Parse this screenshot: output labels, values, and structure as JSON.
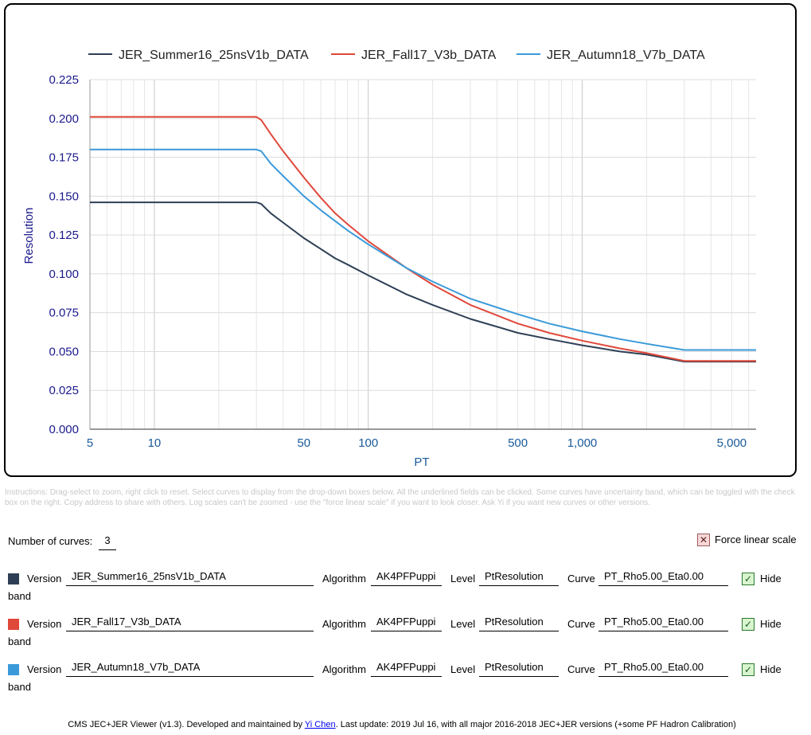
{
  "chart_data": {
    "type": "line",
    "xlabel": "PT",
    "ylabel": "Resolution",
    "x_scale": "log",
    "xlim": [
      5,
      6500
    ],
    "ylim": [
      0,
      0.225
    ],
    "yticks": [
      "0.000",
      "0.025",
      "0.050",
      "0.075",
      "0.100",
      "0.125",
      "0.150",
      "0.175",
      "0.200",
      "0.225"
    ],
    "xticks_labeled": [
      "5",
      "10",
      "50",
      "100",
      "500",
      "1,000",
      "5,000"
    ],
    "grid": true,
    "legend_position": "top",
    "series": [
      {
        "name": "JER_Summer16_25nsV1b_DATA",
        "color": "#2e3f55",
        "x": [
          5,
          30,
          31.6,
          35,
          40,
          50,
          60,
          70,
          80,
          100,
          150,
          200,
          300,
          500,
          700,
          1000,
          1500,
          2000,
          3000,
          6500
        ],
        "y": [
          0.146,
          0.146,
          0.145,
          0.139,
          0.133,
          0.123,
          0.116,
          0.11,
          0.106,
          0.099,
          0.087,
          0.08,
          0.071,
          0.062,
          0.058,
          0.054,
          0.05,
          0.048,
          0.0435,
          0.0435
        ]
      },
      {
        "name": "JER_Fall17_V3b_DATA",
        "color": "#e0483a",
        "x": [
          5,
          30,
          31.6,
          35,
          40,
          50,
          60,
          70,
          80,
          100,
          150,
          200,
          300,
          500,
          700,
          1000,
          1500,
          2000,
          3000,
          6500
        ],
        "y": [
          0.201,
          0.201,
          0.199,
          0.19,
          0.179,
          0.162,
          0.149,
          0.139,
          0.132,
          0.121,
          0.104,
          0.093,
          0.08,
          0.068,
          0.062,
          0.057,
          0.052,
          0.049,
          0.044,
          0.044
        ]
      },
      {
        "name": "JER_Autumn18_V7b_DATA",
        "color": "#3a9ad9",
        "x": [
          5,
          30,
          31.6,
          35,
          40,
          50,
          60,
          70,
          80,
          100,
          150,
          200,
          300,
          500,
          700,
          1000,
          1500,
          2000,
          3000,
          6500
        ],
        "y": [
          0.18,
          0.18,
          0.179,
          0.171,
          0.163,
          0.15,
          0.141,
          0.134,
          0.128,
          0.119,
          0.104,
          0.095,
          0.084,
          0.074,
          0.068,
          0.063,
          0.058,
          0.055,
          0.051,
          0.051
        ]
      }
    ]
  },
  "instructions": "Instructions: Drag-select to zoom, right click to reset. Select curves to display from the drop-down boxes below. All the underlined fields can be clicked. Some curves have uncertainty band, which can be toggled with the check box on the right. Copy address to share with others. Log scales can't be zoomed - use the \"force linear scale\" if you want to look closer. Ask Yi if you want new curves or other versions.",
  "controls": {
    "num_curves_label": "Number of curves:",
    "num_curves_value": "3",
    "force_linear_label": "Force linear scale",
    "force_linear_mark": "✕",
    "hide_mark": "✓"
  },
  "curves": [
    {
      "color": "#2e3f55",
      "version_label": "Version",
      "version": "JER_Summer16_25nsV1b_DATA",
      "algorithm_label": "Algorithm",
      "algorithm": "AK4PFPuppi",
      "level_label": "Level",
      "level": "PtResolution",
      "curve_label": "Curve",
      "curve": "PT_Rho5.00_Eta0.00",
      "hide_label": "Hide",
      "band_label": "band"
    },
    {
      "color": "#e0483a",
      "version_label": "Version",
      "version": "JER_Fall17_V3b_DATA",
      "algorithm_label": "Algorithm",
      "algorithm": "AK4PFPuppi",
      "level_label": "Level",
      "level": "PtResolution",
      "curve_label": "Curve",
      "curve": "PT_Rho5.00_Eta0.00",
      "hide_label": "Hide",
      "band_label": "band"
    },
    {
      "color": "#3a9ad9",
      "version_label": "Version",
      "version": "JER_Autumn18_V7b_DATA",
      "algorithm_label": "Algorithm",
      "algorithm": "AK4PFPuppi",
      "level_label": "Level",
      "level": "PtResolution",
      "curve_label": "Curve",
      "curve": "PT_Rho5.00_Eta0.00",
      "hide_label": "Hide",
      "band_label": "band"
    }
  ],
  "footer": {
    "prefix": "CMS JEC+JER Viewer (v1.3). Developed and maintained by ",
    "author": "Yi Chen",
    "suffix": ". Last update: 2019 Jul 16, with all major 2016-2018 JEC+JER versions (+some PF Hadron Calibration)"
  }
}
